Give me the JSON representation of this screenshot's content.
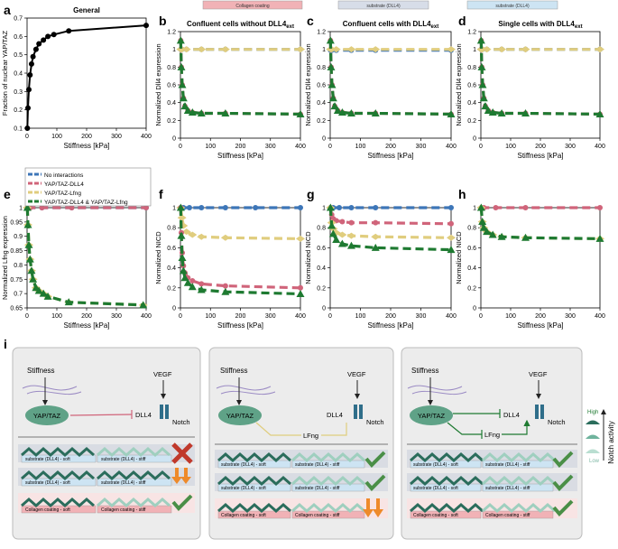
{
  "figure": {
    "panel_letters": [
      "a",
      "b",
      "c",
      "d",
      "e",
      "f",
      "g",
      "h",
      "i"
    ],
    "top_strips": [
      "Collagen coating",
      "substrate (DLL4)",
      "substrate (DLL4)"
    ],
    "legend": [
      {
        "label": "No interactions",
        "color": "#3d76b8"
      },
      {
        "label": "YAP/TAZ-DLL4",
        "color": "#d0647a"
      },
      {
        "label": "YAP/TAZ-Lfng",
        "color": "#e0cd7e"
      },
      {
        "label": "YAP/TAZ-DLL4 & YAP/TAZ-Lfng",
        "color": "#1e7a31"
      }
    ],
    "schematic": {
      "stiffness": "Stiffness",
      "vegf": "VEGF",
      "yaptaz": "YAP/TAZ",
      "dll4": "DLL4",
      "lfng": "LFng",
      "notch": "Notch",
      "row_labels": {
        "sub_soft": "substrate (DLL4) - soft",
        "sub_stiff": "substrate (DLL4) - stiff",
        "col_soft": "Collagen coating - soft",
        "col_stiff": "Collagen coating - stiff"
      },
      "notch_activity": "Notch activity",
      "high": "High",
      "low": "Low"
    }
  },
  "chart_data": [
    {
      "id": "a",
      "type": "line",
      "title": "General",
      "xlabel": "Stiffness [kPa]",
      "ylabel": "Fraction of nuclear YAP/TAZ",
      "xlim": [
        0,
        400
      ],
      "ylim": [
        0.1,
        0.7
      ],
      "xticks": [
        0,
        100,
        200,
        300,
        400
      ],
      "yticks": [
        0.1,
        0.2,
        0.3,
        0.4,
        0.5,
        0.6,
        0.7
      ],
      "series": [
        {
          "color": "#000000",
          "marker": "circle",
          "x": [
            1,
            3,
            6,
            10,
            15,
            20,
            30,
            40,
            55,
            70,
            90,
            140,
            400
          ],
          "y": [
            0.1,
            0.21,
            0.31,
            0.39,
            0.45,
            0.49,
            0.53,
            0.56,
            0.58,
            0.6,
            0.61,
            0.63,
            0.66
          ]
        }
      ]
    },
    {
      "id": "b",
      "type": "line",
      "title": "Confluent cells without DLL4",
      "title_sub": "ext",
      "xlabel": "Stiffness [kPa]",
      "ylabel": "Normalized Dll4 expression",
      "xlim": [
        0,
        400
      ],
      "ylim": [
        0,
        1.2
      ],
      "xticks": [
        0,
        100,
        200,
        300,
        400
      ],
      "yticks": [
        0,
        0.2,
        0.4,
        0.6,
        0.8,
        1,
        1.2
      ],
      "series": [
        {
          "color": "#3d76b8",
          "x": [
            1,
            5,
            20,
            70,
            150,
            400
          ],
          "y": [
            1,
            1,
            1,
            1,
            1,
            1
          ]
        },
        {
          "color": "#e0cd7e",
          "x": [
            1,
            5,
            20,
            70,
            150,
            400
          ],
          "y": [
            1,
            1,
            1,
            1,
            1,
            1
          ]
        },
        {
          "color": "#d0647a",
          "x": [
            1,
            3,
            6,
            10,
            15,
            25,
            40,
            70,
            150,
            400
          ],
          "y": [
            1.1,
            0.8,
            0.6,
            0.45,
            0.36,
            0.31,
            0.29,
            0.28,
            0.28,
            0.27
          ]
        },
        {
          "color": "#1e7a31",
          "x": [
            1,
            3,
            6,
            10,
            15,
            25,
            40,
            70,
            150,
            400
          ],
          "y": [
            1.1,
            0.8,
            0.6,
            0.45,
            0.36,
            0.31,
            0.29,
            0.28,
            0.28,
            0.27
          ]
        }
      ]
    },
    {
      "id": "c",
      "type": "line",
      "title": "Confluent cells with DLL4",
      "title_sub": "ext",
      "xlabel": "Stiffness [kPa]",
      "ylabel": "Normalized Dll4 expression",
      "xlim": [
        0,
        400
      ],
      "ylim": [
        0,
        1.2
      ],
      "xticks": [
        0,
        100,
        200,
        300,
        400
      ],
      "yticks": [
        0,
        0.2,
        0.4,
        0.6,
        0.8,
        1,
        1.2
      ],
      "series": [
        {
          "color": "#3d76b8",
          "x": [
            1,
            5,
            20,
            70,
            150,
            400
          ],
          "y": [
            0.99,
            0.99,
            0.99,
            0.99,
            0.99,
            0.99
          ]
        },
        {
          "color": "#e0cd7e",
          "x": [
            1,
            5,
            20,
            70,
            150,
            400
          ],
          "y": [
            1,
            1,
            1,
            1,
            1,
            1
          ]
        },
        {
          "color": "#d0647a",
          "x": [
            1,
            3,
            6,
            10,
            15,
            25,
            40,
            70,
            150,
            400
          ],
          "y": [
            1.1,
            0.8,
            0.6,
            0.45,
            0.36,
            0.31,
            0.29,
            0.28,
            0.28,
            0.27
          ]
        },
        {
          "color": "#1e7a31",
          "x": [
            1,
            3,
            6,
            10,
            15,
            25,
            40,
            70,
            150,
            400
          ],
          "y": [
            1.1,
            0.8,
            0.6,
            0.45,
            0.36,
            0.31,
            0.29,
            0.28,
            0.28,
            0.27
          ]
        }
      ]
    },
    {
      "id": "d",
      "type": "line",
      "title": "Single cells with DLL4",
      "title_sub": "ext",
      "xlabel": "Stiffness [kPa]",
      "ylabel": "Normalized Dll4 expression",
      "xlim": [
        0,
        400
      ],
      "ylim": [
        0,
        1.2
      ],
      "xticks": [
        0,
        100,
        200,
        300,
        400
      ],
      "yticks": [
        0,
        0.2,
        0.4,
        0.6,
        0.8,
        1,
        1.2
      ],
      "series": [
        {
          "color": "#3d76b8",
          "x": [
            1,
            5,
            20,
            70,
            150,
            400
          ],
          "y": [
            1,
            1,
            1,
            1,
            1,
            1
          ]
        },
        {
          "color": "#e0cd7e",
          "x": [
            1,
            5,
            20,
            70,
            150,
            400
          ],
          "y": [
            1,
            1,
            1,
            1,
            1,
            1
          ]
        },
        {
          "color": "#d0647a",
          "x": [
            1,
            3,
            6,
            10,
            15,
            25,
            40,
            70,
            150,
            400
          ],
          "y": [
            1.1,
            0.8,
            0.6,
            0.45,
            0.36,
            0.31,
            0.29,
            0.28,
            0.28,
            0.27
          ]
        },
        {
          "color": "#1e7a31",
          "x": [
            1,
            3,
            6,
            10,
            15,
            25,
            40,
            70,
            150,
            400
          ],
          "y": [
            1.1,
            0.8,
            0.6,
            0.45,
            0.36,
            0.31,
            0.29,
            0.28,
            0.28,
            0.27
          ]
        }
      ]
    },
    {
      "id": "e",
      "type": "line",
      "title": "",
      "xlabel": "Stiffness [kPa]",
      "ylabel": "Normalized Lfng expression",
      "xlim": [
        0,
        400
      ],
      "ylim": [
        0.65,
        1.0
      ],
      "xticks": [
        0,
        100,
        200,
        300,
        400
      ],
      "yticks": [
        0.65,
        0.7,
        0.75,
        0.8,
        0.85,
        0.9,
        0.95,
        1
      ],
      "series": [
        {
          "color": "#3d76b8",
          "x": [
            1,
            10,
            50,
            150,
            400
          ],
          "y": [
            1,
            1,
            1,
            1,
            1
          ]
        },
        {
          "color": "#d0647a",
          "x": [
            1,
            10,
            50,
            150,
            400
          ],
          "y": [
            1,
            1,
            1,
            1,
            1
          ]
        },
        {
          "color": "#e0cd7e",
          "x": [
            1,
            3,
            6,
            10,
            15,
            20,
            30,
            40,
            55,
            70,
            140,
            390
          ],
          "y": [
            1,
            0.94,
            0.87,
            0.82,
            0.78,
            0.75,
            0.72,
            0.71,
            0.7,
            0.69,
            0.67,
            0.66
          ]
        },
        {
          "color": "#1e7a31",
          "x": [
            1,
            3,
            6,
            10,
            15,
            20,
            30,
            40,
            55,
            70,
            140,
            390
          ],
          "y": [
            1,
            0.94,
            0.87,
            0.82,
            0.78,
            0.75,
            0.72,
            0.71,
            0.7,
            0.69,
            0.67,
            0.66
          ]
        }
      ]
    },
    {
      "id": "f",
      "type": "line",
      "title": "",
      "xlabel": "Stiffness [kPa]",
      "ylabel": "Normalized NICD",
      "xlim": [
        0,
        400
      ],
      "ylim": [
        0,
        1
      ],
      "xticks": [
        0,
        100,
        200,
        300,
        400
      ],
      "yticks": [
        0,
        0.2,
        0.4,
        0.6,
        0.8,
        1
      ],
      "series": [
        {
          "color": "#3d76b8",
          "x": [
            1,
            10,
            30,
            70,
            150,
            250,
            400
          ],
          "y": [
            1,
            1,
            1,
            1,
            1,
            1,
            1
          ]
        },
        {
          "color": "#e0cd7e",
          "x": [
            1,
            5,
            10,
            20,
            40,
            70,
            150,
            400
          ],
          "y": [
            1,
            0.9,
            0.82,
            0.76,
            0.73,
            0.71,
            0.7,
            0.69
          ]
        },
        {
          "color": "#d0647a",
          "x": [
            1,
            3,
            6,
            10,
            15,
            25,
            40,
            70,
            150,
            400
          ],
          "y": [
            1,
            0.75,
            0.55,
            0.42,
            0.35,
            0.3,
            0.27,
            0.24,
            0.22,
            0.2
          ]
        },
        {
          "color": "#1e7a31",
          "x": [
            1,
            3,
            6,
            10,
            15,
            25,
            40,
            70,
            150,
            400
          ],
          "y": [
            1,
            0.72,
            0.5,
            0.37,
            0.3,
            0.25,
            0.21,
            0.18,
            0.16,
            0.14
          ]
        }
      ]
    },
    {
      "id": "g",
      "type": "line",
      "title": "",
      "xlabel": "Stiffness [kPa]",
      "ylabel": "Normalized NICD",
      "xlim": [
        0,
        400
      ],
      "ylim": [
        0,
        1
      ],
      "xticks": [
        0,
        100,
        200,
        300,
        400
      ],
      "yticks": [
        0,
        0.2,
        0.4,
        0.6,
        0.8,
        1
      ],
      "series": [
        {
          "color": "#3d76b8",
          "x": [
            1,
            10,
            30,
            70,
            150,
            400
          ],
          "y": [
            1,
            1,
            1,
            1,
            1,
            1
          ]
        },
        {
          "color": "#d0647a",
          "x": [
            1,
            5,
            10,
            20,
            40,
            70,
            150,
            400
          ],
          "y": [
            1,
            0.93,
            0.89,
            0.87,
            0.86,
            0.85,
            0.85,
            0.84
          ]
        },
        {
          "color": "#e0cd7e",
          "x": [
            1,
            5,
            10,
            20,
            40,
            70,
            150,
            400
          ],
          "y": [
            1,
            0.85,
            0.79,
            0.75,
            0.73,
            0.72,
            0.71,
            0.7
          ]
        },
        {
          "color": "#1e7a31",
          "x": [
            1,
            5,
            10,
            20,
            40,
            70,
            150,
            400
          ],
          "y": [
            1,
            0.82,
            0.74,
            0.68,
            0.64,
            0.62,
            0.6,
            0.58
          ]
        }
      ]
    },
    {
      "id": "h",
      "type": "line",
      "title": "",
      "xlabel": "Stiffness [kPa]",
      "ylabel": "Normalized NICD",
      "xlim": [
        0,
        400
      ],
      "ylim": [
        0,
        1
      ],
      "xticks": [
        0,
        100,
        200,
        300,
        400
      ],
      "yticks": [
        0,
        0.2,
        0.4,
        0.6,
        0.8,
        1
      ],
      "series": [
        {
          "color": "#d0647a",
          "x": [
            1,
            10,
            50,
            150,
            400
          ],
          "y": [
            1,
            1,
            1,
            1,
            1
          ]
        },
        {
          "color": "#e0cd7e",
          "x": [
            1,
            5,
            10,
            20,
            40,
            70,
            150,
            400
          ],
          "y": [
            1,
            0.86,
            0.8,
            0.76,
            0.73,
            0.71,
            0.7,
            0.69
          ]
        },
        {
          "color": "#1e7a31",
          "x": [
            1,
            5,
            10,
            20,
            40,
            70,
            150,
            400
          ],
          "y": [
            1,
            0.86,
            0.8,
            0.76,
            0.73,
            0.71,
            0.7,
            0.69
          ]
        }
      ]
    }
  ]
}
